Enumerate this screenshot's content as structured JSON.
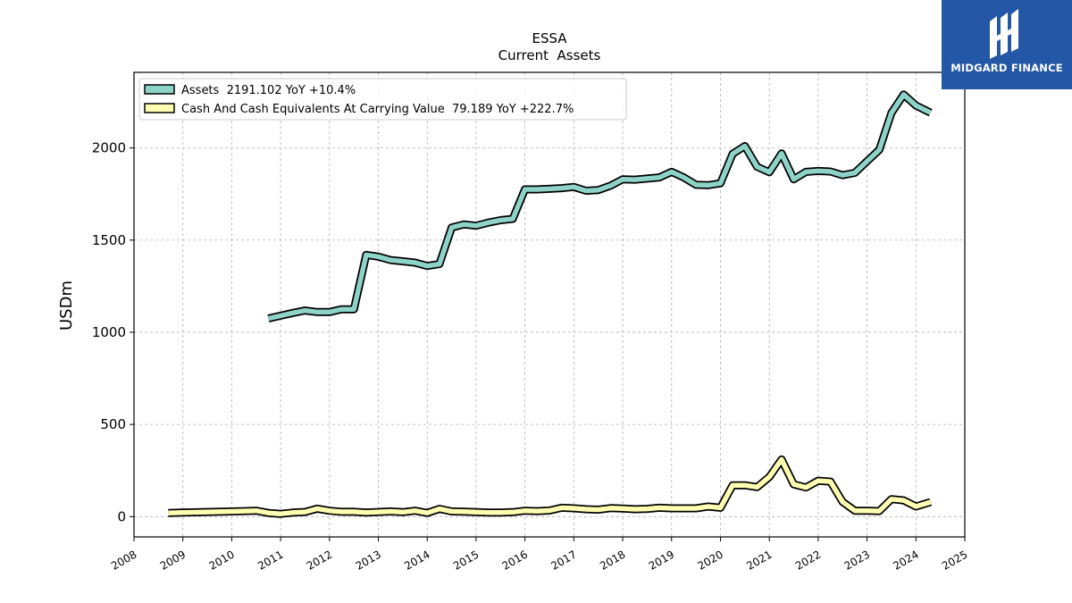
{
  "brand": {
    "name": "MIDGARD FINANCE",
    "bg_color": "#2457a6"
  },
  "chart_data": {
    "type": "line",
    "title": "ESSA",
    "subtitle": "Current  Assets",
    "xlabel": "",
    "ylabel": "USDm",
    "xlim": [
      2008,
      2025
    ],
    "ylim": [
      -110,
      2410
    ],
    "x_ticks": [
      "2008",
      "2009",
      "2010",
      "2011",
      "2012",
      "2013",
      "2014",
      "2015",
      "2016",
      "2017",
      "2018",
      "2019",
      "2020",
      "2021",
      "2022",
      "2023",
      "2024",
      "2025"
    ],
    "y_ticks": [
      "0",
      "500",
      "1000",
      "1500",
      "2000"
    ],
    "grid": true,
    "legend_position": "top-left",
    "series": [
      {
        "name": "Assets  2191.102 YoY +10.4%",
        "color": "#8dd3c7",
        "points": [
          [
            2010.75,
            1075
          ],
          [
            2011.0,
            1090
          ],
          [
            2011.25,
            1105
          ],
          [
            2011.5,
            1118
          ],
          [
            2011.75,
            1110
          ],
          [
            2012.0,
            1110
          ],
          [
            2012.25,
            1125
          ],
          [
            2012.5,
            1125
          ],
          [
            2012.75,
            1420
          ],
          [
            2013.0,
            1410
          ],
          [
            2013.25,
            1392
          ],
          [
            2013.5,
            1385
          ],
          [
            2013.75,
            1378
          ],
          [
            2014.0,
            1360
          ],
          [
            2014.25,
            1370
          ],
          [
            2014.5,
            1568
          ],
          [
            2014.75,
            1585
          ],
          [
            2015.0,
            1578
          ],
          [
            2015.25,
            1595
          ],
          [
            2015.5,
            1608
          ],
          [
            2015.75,
            1615
          ],
          [
            2016.0,
            1775
          ],
          [
            2016.25,
            1775
          ],
          [
            2016.5,
            1778
          ],
          [
            2016.75,
            1782
          ],
          [
            2017.0,
            1788
          ],
          [
            2017.25,
            1768
          ],
          [
            2017.5,
            1772
          ],
          [
            2017.75,
            1795
          ],
          [
            2018.0,
            1830
          ],
          [
            2018.25,
            1828
          ],
          [
            2018.5,
            1834
          ],
          [
            2018.75,
            1840
          ],
          [
            2019.0,
            1870
          ],
          [
            2019.25,
            1840
          ],
          [
            2019.5,
            1800
          ],
          [
            2019.75,
            1798
          ],
          [
            2020.0,
            1808
          ],
          [
            2020.25,
            1968
          ],
          [
            2020.5,
            2010
          ],
          [
            2020.75,
            1898
          ],
          [
            2021.0,
            1868
          ],
          [
            2021.25,
            1970
          ],
          [
            2021.5,
            1830
          ],
          [
            2021.75,
            1870
          ],
          [
            2022.0,
            1875
          ],
          [
            2022.25,
            1872
          ],
          [
            2022.5,
            1852
          ],
          [
            2022.75,
            1865
          ],
          [
            2023.0,
            1928
          ],
          [
            2023.25,
            1990
          ],
          [
            2023.5,
            2190
          ],
          [
            2023.75,
            2290
          ],
          [
            2024.0,
            2230
          ],
          [
            2024.3,
            2191.102
          ]
        ]
      },
      {
        "name": "Cash And Cash Equivalents At Carrying Value  79.189 YoY +222.7%",
        "color": "#ffffb3",
        "points": [
          [
            2008.7,
            20
          ],
          [
            2009.0,
            22
          ],
          [
            2009.5,
            25
          ],
          [
            2010.0,
            28
          ],
          [
            2010.5,
            32
          ],
          [
            2010.75,
            20
          ],
          [
            2011.0,
            15
          ],
          [
            2011.25,
            22
          ],
          [
            2011.5,
            25
          ],
          [
            2011.75,
            43
          ],
          [
            2012.0,
            32
          ],
          [
            2012.25,
            26
          ],
          [
            2012.5,
            26
          ],
          [
            2012.75,
            22
          ],
          [
            2013.0,
            25
          ],
          [
            2013.25,
            28
          ],
          [
            2013.5,
            24
          ],
          [
            2013.75,
            32
          ],
          [
            2014.0,
            20
          ],
          [
            2014.25,
            42
          ],
          [
            2014.5,
            28
          ],
          [
            2014.75,
            27
          ],
          [
            2015.0,
            24
          ],
          [
            2015.25,
            22
          ],
          [
            2015.5,
            22
          ],
          [
            2015.75,
            24
          ],
          [
            2016.0,
            32
          ],
          [
            2016.25,
            30
          ],
          [
            2016.5,
            33
          ],
          [
            2016.75,
            48
          ],
          [
            2017.0,
            45
          ],
          [
            2017.25,
            40
          ],
          [
            2017.5,
            38
          ],
          [
            2017.75,
            46
          ],
          [
            2018.0,
            44
          ],
          [
            2018.25,
            40
          ],
          [
            2018.5,
            42
          ],
          [
            2018.75,
            48
          ],
          [
            2019.0,
            45
          ],
          [
            2019.25,
            45
          ],
          [
            2019.5,
            45
          ],
          [
            2019.75,
            55
          ],
          [
            2020.0,
            48
          ],
          [
            2020.25,
            170
          ],
          [
            2020.5,
            170
          ],
          [
            2020.75,
            160
          ],
          [
            2021.0,
            215
          ],
          [
            2021.25,
            310
          ],
          [
            2021.5,
            175
          ],
          [
            2021.75,
            158
          ],
          [
            2022.0,
            195
          ],
          [
            2022.25,
            190
          ],
          [
            2022.5,
            80
          ],
          [
            2022.75,
            32
          ],
          [
            2023.0,
            32
          ],
          [
            2023.25,
            30
          ],
          [
            2023.5,
            95
          ],
          [
            2023.75,
            88
          ],
          [
            2024.0,
            55
          ],
          [
            2024.3,
            79.189
          ]
        ]
      }
    ]
  }
}
